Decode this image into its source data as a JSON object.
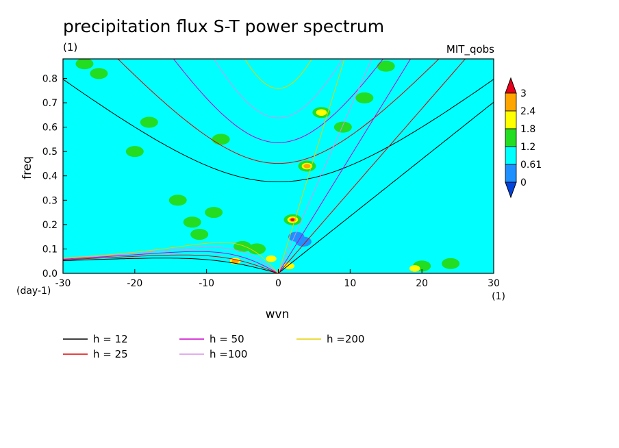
{
  "chart_data": {
    "type": "heatmap",
    "title": "precipitation flux S-T power spectrum",
    "subtitle_left": "(1)",
    "subtitle_right": "MIT_qobs",
    "xlabel": "wvn",
    "ylabel": "freq",
    "x_unit": "(1)",
    "y_unit": "(day-1)",
    "xlim": [
      -30,
      30
    ],
    "ylim": [
      0,
      0.88
    ],
    "x_ticks": [
      -30,
      -20,
      -10,
      0,
      10,
      20,
      30
    ],
    "y_ticks": [
      0.0,
      0.1,
      0.2,
      0.3,
      0.4,
      0.5,
      0.6,
      0.7,
      0.8
    ],
    "x_tick_labels": [
      "-30",
      "-20",
      "-10",
      "0",
      "10",
      "20",
      "30"
    ],
    "y_tick_labels": [
      "0.0",
      "0.1",
      "0.2",
      "0.3",
      "0.4",
      "0.5",
      "0.6",
      "0.7",
      "0.8"
    ],
    "colorbar": {
      "levels": [
        "3",
        "2.4",
        "1.8",
        "1.2",
        "0.61",
        "0"
      ],
      "colors": [
        "#e8001c",
        "#ffa500",
        "#ffff00",
        "#22dd22",
        "#00ffff",
        "#1e90ff",
        "#0044dd"
      ]
    },
    "background_color": "#00ffff",
    "dispersion_curves": [
      {
        "label": "h = 12",
        "equivalent_depth": 12,
        "color": "#000000"
      },
      {
        "label": "h = 25",
        "equivalent_depth": 25,
        "color": "#e00000"
      },
      {
        "label": "h = 50",
        "equivalent_depth": 50,
        "color": "#cc00cc"
      },
      {
        "label": "h =100",
        "equivalent_depth": 100,
        "color": "#d890e8"
      },
      {
        "label": "h =200",
        "equivalent_depth": 200,
        "color": "#e6d000"
      }
    ],
    "features": [
      {
        "level": "1.2",
        "x": -27,
        "y": 0.86
      },
      {
        "level": "1.2",
        "x": -25,
        "y": 0.82
      },
      {
        "level": "1.2",
        "x": -18,
        "y": 0.62
      },
      {
        "level": "1.2",
        "x": -12,
        "y": 0.21
      },
      {
        "level": "1.2",
        "x": -11,
        "y": 0.16
      },
      {
        "level": "1.2",
        "x": -9,
        "y": 0.25
      },
      {
        "level": "1.2",
        "x": -14,
        "y": 0.3
      },
      {
        "level": "1.2",
        "x": -5,
        "y": 0.11
      },
      {
        "level": "1.2",
        "x": -3,
        "y": 0.1
      },
      {
        "level": "1.2",
        "x": 2,
        "y": 0.22
      },
      {
        "level": "1.2",
        "x": 4,
        "y": 0.44
      },
      {
        "level": "1.2",
        "x": 6,
        "y": 0.66
      },
      {
        "level": "1.2",
        "x": 9,
        "y": 0.6
      },
      {
        "level": "1.2",
        "x": 12,
        "y": 0.72
      },
      {
        "level": "1.2",
        "x": 15,
        "y": 0.85
      },
      {
        "level": "1.2",
        "x": 20,
        "y": 0.03
      },
      {
        "level": "1.2",
        "x": 24,
        "y": 0.04
      },
      {
        "level": "1.2",
        "x": -20,
        "y": 0.5
      },
      {
        "level": "1.2",
        "x": -8,
        "y": 0.55
      },
      {
        "level": "1.8",
        "x": -6,
        "y": 0.05
      },
      {
        "level": "1.8",
        "x": -1,
        "y": 0.06
      },
      {
        "level": "1.8",
        "x": 1.5,
        "y": 0.03
      },
      {
        "level": "1.8",
        "x": 2,
        "y": 0.22
      },
      {
        "level": "1.8",
        "x": 4,
        "y": 0.44
      },
      {
        "level": "1.8",
        "x": 6,
        "y": 0.66
      },
      {
        "level": "1.8",
        "x": 19,
        "y": 0.02
      },
      {
        "level": "2.4",
        "x": -6,
        "y": 0.05
      },
      {
        "level": "2.4",
        "x": 2,
        "y": 0.22
      },
      {
        "level": "2.4",
        "x": 4,
        "y": 0.44
      },
      {
        "level": "3",
        "x": 2,
        "y": 0.22
      },
      {
        "level": "0",
        "x": 2.5,
        "y": 0.15
      },
      {
        "level": "0",
        "x": 3.5,
        "y": 0.13
      }
    ]
  }
}
